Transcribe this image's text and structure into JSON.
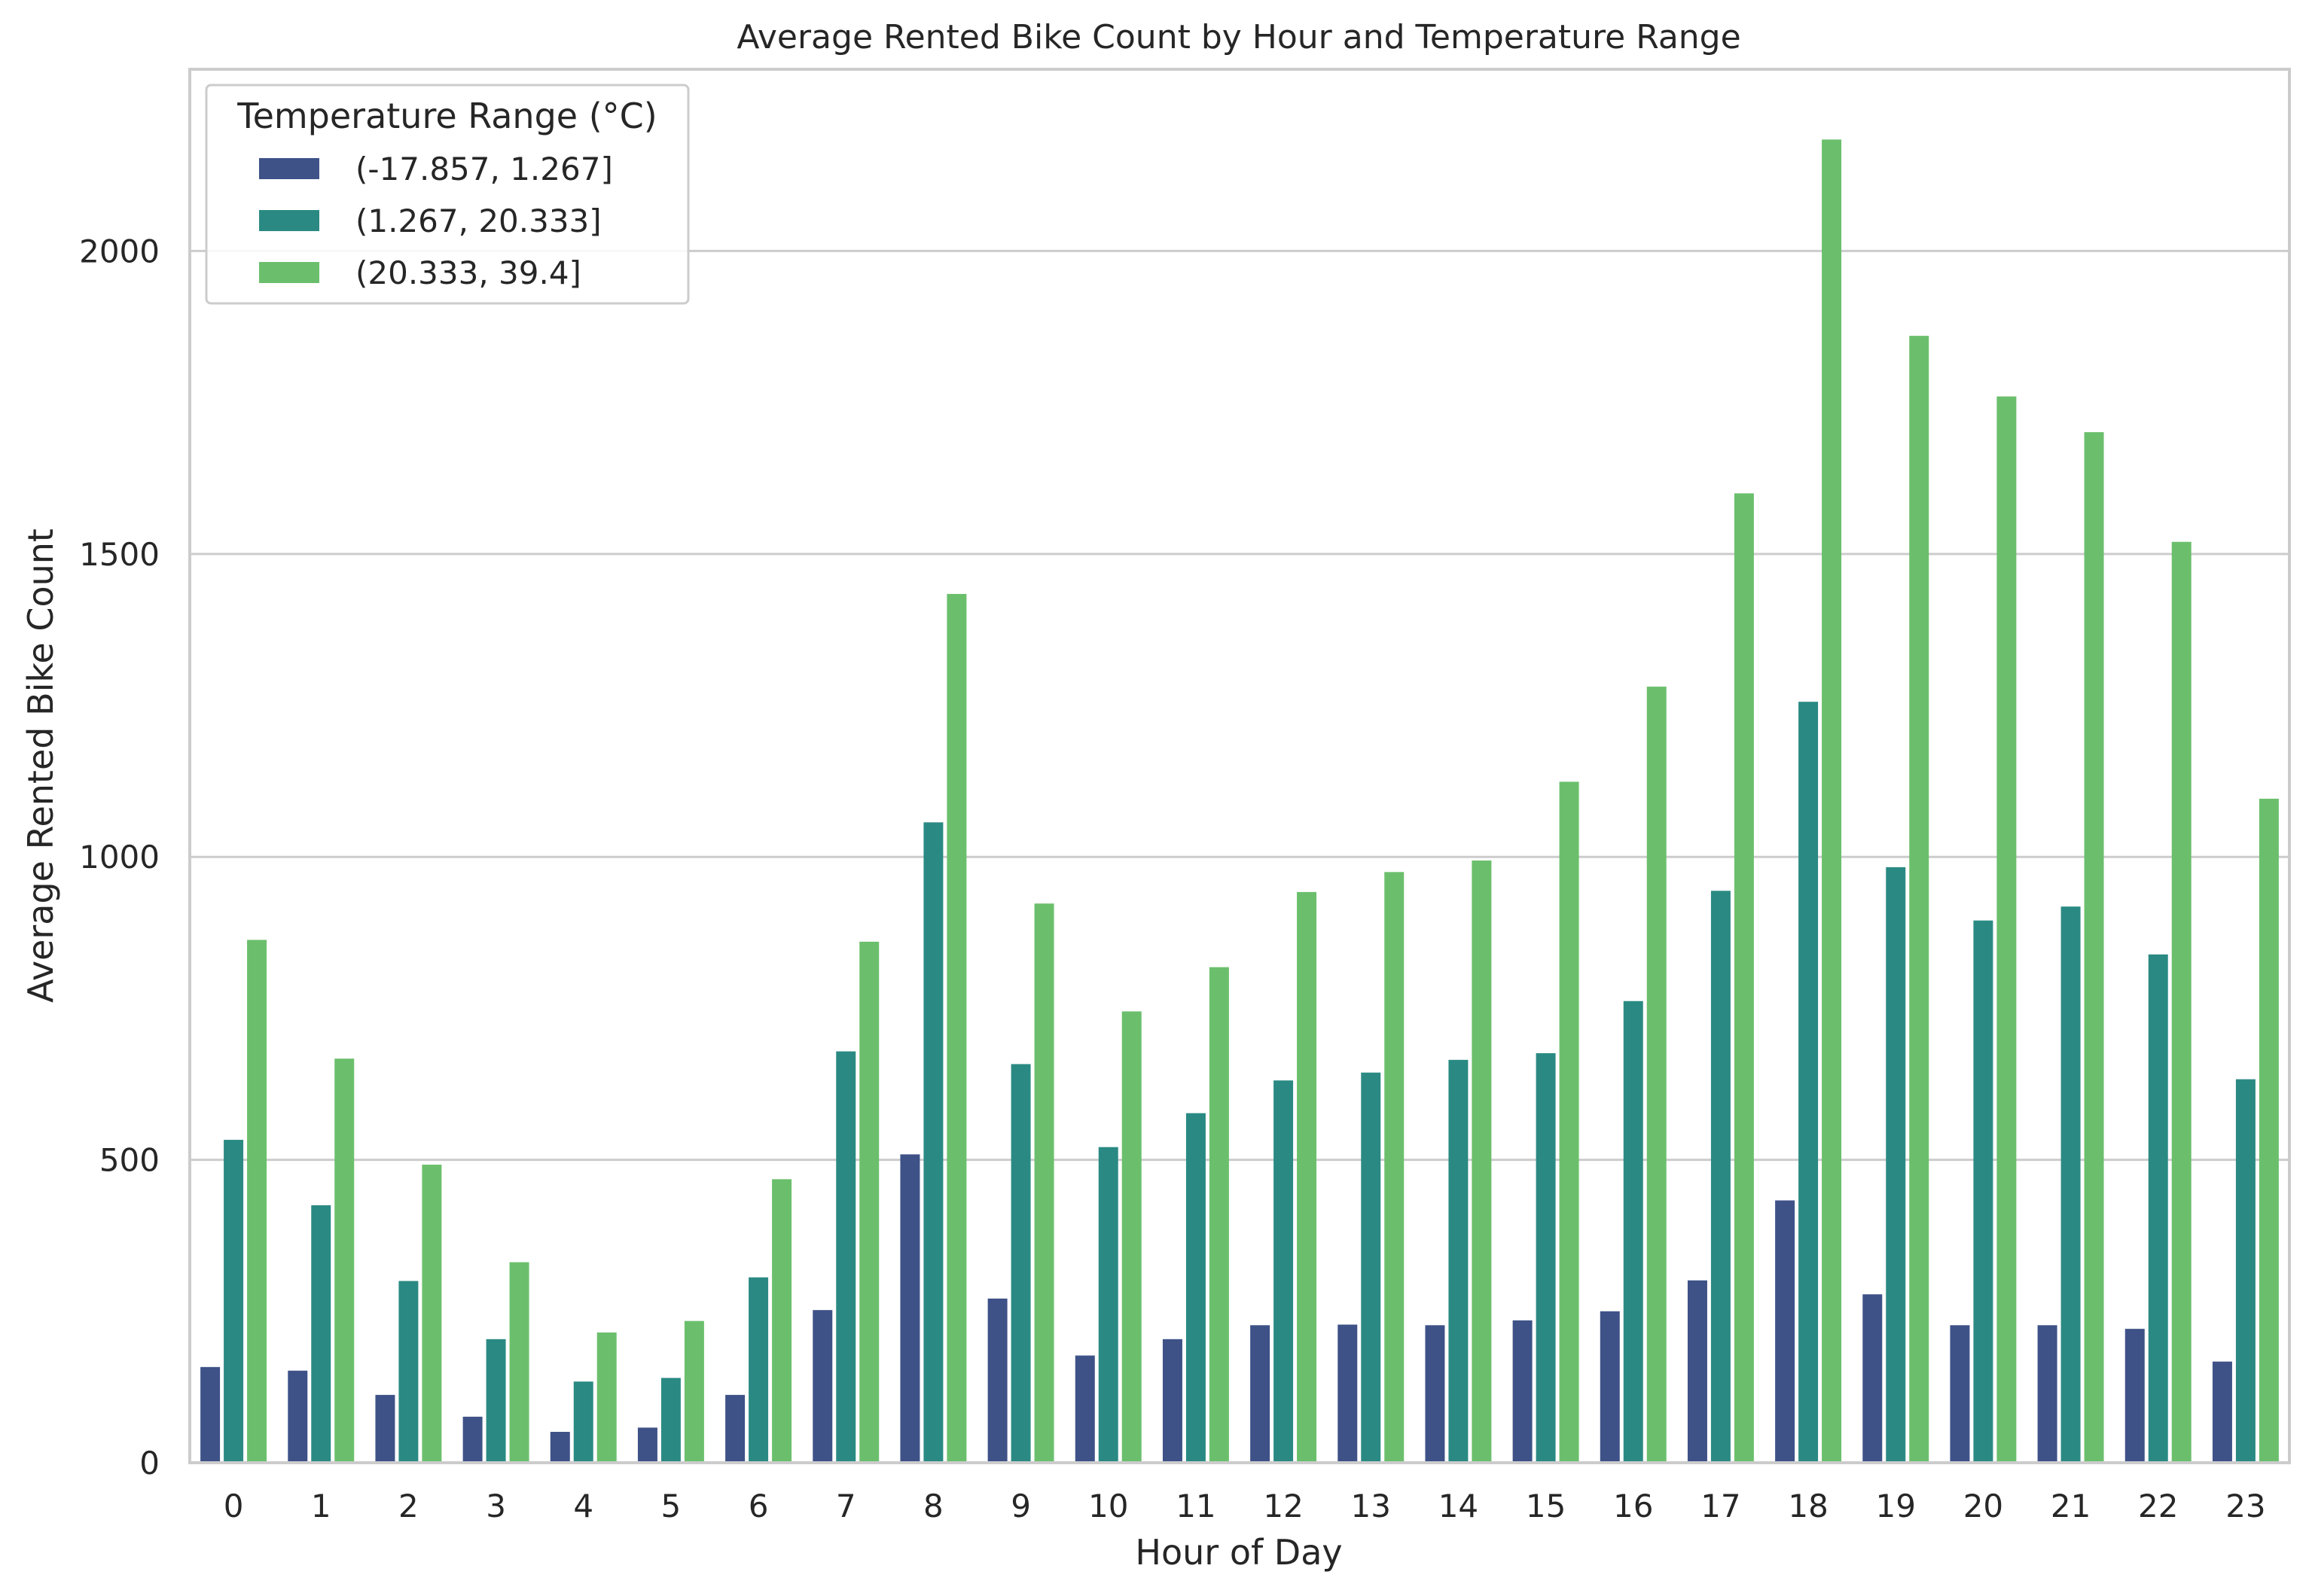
{
  "chart_data": {
    "type": "bar",
    "title": "Average Rented Bike Count by Hour and Temperature Range",
    "xlabel": "Hour of Day",
    "ylabel": "Average Rented Bike Count",
    "ylim": [
      0,
      2300
    ],
    "yticks": [
      0,
      500,
      1000,
      1500,
      2000
    ],
    "grid": "horizontal",
    "legend": {
      "title": "Temperature Range (°C)",
      "placement": "top-left"
    },
    "categories": [
      "0",
      "1",
      "2",
      "3",
      "4",
      "5",
      "6",
      "7",
      "8",
      "9",
      "10",
      "11",
      "12",
      "13",
      "14",
      "15",
      "16",
      "17",
      "18",
      "19",
      "20",
      "21",
      "22",
      "23"
    ],
    "series": [
      {
        "name": "(-17.857, 1.267]",
        "color": "#3e5288",
        "values": [
          158,
          152,
          112,
          76,
          51,
          58,
          112,
          252,
          509,
          271,
          177,
          204,
          227,
          228,
          227,
          235,
          250,
          301,
          433,
          278,
          227,
          227,
          221,
          167
        ]
      },
      {
        "name": "(1.267, 20.333]",
        "color": "#2a8a83",
        "values": [
          533,
          425,
          300,
          204,
          134,
          140,
          306,
          679,
          1057,
          658,
          521,
          577,
          631,
          644,
          665,
          676,
          762,
          944,
          1256,
          983,
          895,
          918,
          839,
          633
        ]
      },
      {
        "name": "(20.333, 39.4]",
        "color": "#6bbf6c",
        "values": [
          863,
          667,
          492,
          331,
          215,
          234,
          468,
          860,
          1434,
          923,
          745,
          818,
          942,
          975,
          994,
          1124,
          1281,
          1600,
          2184,
          1860,
          1760,
          1701,
          1520,
          1096
        ]
      }
    ]
  }
}
